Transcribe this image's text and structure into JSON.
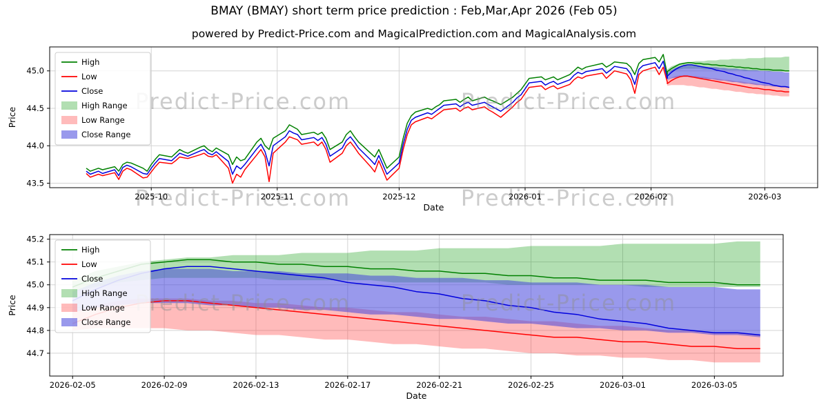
{
  "page": {
    "title": "BMAY (BMAY) short term price prediction : Feb,Mar,Apr 2026 (Feb 05)",
    "subtitle": "powered by Predict-Price.com and MagicalPrediction.com and MagicalAnalysis.com",
    "watermark_text": "Predict-Price.com"
  },
  "colors": {
    "high": "#008000",
    "low": "#ff0000",
    "close": "#0000dd",
    "high_range": "rgba(0,150,0,0.30)",
    "low_range": "rgba(255,60,60,0.35)",
    "close_range": "rgba(70,70,220,0.55)",
    "grid": "#d3d3d3",
    "watermark": "#909090"
  },
  "legend_items": [
    {
      "label": "High",
      "type": "line",
      "color_key": "high"
    },
    {
      "label": "Low",
      "type": "line",
      "color_key": "low"
    },
    {
      "label": "Close",
      "type": "line",
      "color_key": "close"
    },
    {
      "label": "High Range",
      "type": "patch",
      "color_key": "high_range"
    },
    {
      "label": "Low Range",
      "type": "patch",
      "color_key": "low_range"
    },
    {
      "label": "Close Range",
      "type": "patch",
      "color_key": "close_range"
    }
  ],
  "chart_data": {
    "type": "line",
    "charts": [
      {
        "id": "top",
        "xlabel": "Date",
        "ylabel": "Price",
        "ylim": [
          43.44,
          45.32
        ],
        "yticks": [
          43.5,
          44.0,
          44.5,
          45.0
        ],
        "xlim": [
          "2025-09-06",
          "2026-03-14"
        ],
        "xticks": [
          {
            "date": "2025-10-01",
            "label": "2025-10"
          },
          {
            "date": "2025-11-01",
            "label": "2025-11"
          },
          {
            "date": "2025-12-01",
            "label": "2025-12"
          },
          {
            "date": "2026-01-01",
            "label": "2026-01"
          },
          {
            "date": "2026-02-01",
            "label": "2026-02"
          },
          {
            "date": "2026-03-01",
            "label": "2026-03"
          }
        ]
      },
      {
        "id": "bottom",
        "xlabel": "Date",
        "ylabel": "Price",
        "ylim": [
          44.6,
          45.22
        ],
        "yticks": [
          44.7,
          44.8,
          44.9,
          45.0,
          45.1,
          45.2
        ],
        "xlim": [
          "2026-02-04",
          "2026-03-08"
        ],
        "xticks": [
          {
            "date": "2026-02-05",
            "label": "2026-02-05"
          },
          {
            "date": "2026-02-09",
            "label": "2026-02-09"
          },
          {
            "date": "2026-02-13",
            "label": "2026-02-13"
          },
          {
            "date": "2026-02-17",
            "label": "2026-02-17"
          },
          {
            "date": "2026-02-21",
            "label": "2026-02-21"
          },
          {
            "date": "2026-02-25",
            "label": "2026-02-25"
          },
          {
            "date": "2026-03-01",
            "label": "2026-03-01"
          },
          {
            "date": "2026-03-05",
            "label": "2026-03-05"
          }
        ]
      }
    ],
    "history": {
      "dates": [
        "2025-09-15",
        "2025-09-16",
        "2025-09-18",
        "2025-09-19",
        "2025-09-22",
        "2025-09-23",
        "2025-09-24",
        "2025-09-25",
        "2025-09-26",
        "2025-09-29",
        "2025-09-30",
        "2025-10-01",
        "2025-10-02",
        "2025-10-03",
        "2025-10-06",
        "2025-10-07",
        "2025-10-08",
        "2025-10-09",
        "2025-10-10",
        "2025-10-13",
        "2025-10-14",
        "2025-10-15",
        "2025-10-16",
        "2025-10-17",
        "2025-10-20",
        "2025-10-21",
        "2025-10-22",
        "2025-10-23",
        "2025-10-24",
        "2025-10-27",
        "2025-10-28",
        "2025-10-29",
        "2025-10-30",
        "2025-10-31",
        "2025-11-03",
        "2025-11-04",
        "2025-11-05",
        "2025-11-06",
        "2025-11-07",
        "2025-11-10",
        "2025-11-11",
        "2025-11-12",
        "2025-11-13",
        "2025-11-14",
        "2025-11-17",
        "2025-11-18",
        "2025-11-19",
        "2025-11-20",
        "2025-11-21",
        "2025-11-24",
        "2025-11-25",
        "2025-11-26",
        "2025-11-28",
        "2025-12-01",
        "2025-12-02",
        "2025-12-03",
        "2025-12-04",
        "2025-12-05",
        "2025-12-08",
        "2025-12-09",
        "2025-12-10",
        "2025-12-11",
        "2025-12-12",
        "2025-12-15",
        "2025-12-16",
        "2025-12-17",
        "2025-12-18",
        "2025-12-19",
        "2025-12-22",
        "2025-12-23",
        "2025-12-24",
        "2025-12-26",
        "2025-12-29",
        "2025-12-30",
        "2025-12-31",
        "2026-01-02",
        "2026-01-05",
        "2026-01-06",
        "2026-01-07",
        "2026-01-08",
        "2026-01-09",
        "2026-01-12",
        "2026-01-13",
        "2026-01-14",
        "2026-01-15",
        "2026-01-16",
        "2026-01-20",
        "2026-01-21",
        "2026-01-22",
        "2026-01-23",
        "2026-01-26",
        "2026-01-27",
        "2026-01-28",
        "2026-01-29",
        "2026-01-30",
        "2026-02-02",
        "2026-02-03",
        "2026-02-04",
        "2026-02-05"
      ],
      "high": [
        43.7,
        43.66,
        43.7,
        43.68,
        43.72,
        43.66,
        43.75,
        43.78,
        43.77,
        43.7,
        43.66,
        43.75,
        43.82,
        43.88,
        43.85,
        43.9,
        43.95,
        43.92,
        43.9,
        43.98,
        44.0,
        43.95,
        43.92,
        43.97,
        43.88,
        43.75,
        43.85,
        43.8,
        43.82,
        44.05,
        44.1,
        44.0,
        43.95,
        44.1,
        44.2,
        44.28,
        44.25,
        44.22,
        44.15,
        44.18,
        44.15,
        44.18,
        44.1,
        43.95,
        44.05,
        44.15,
        44.2,
        44.12,
        44.05,
        43.9,
        43.85,
        43.95,
        43.7,
        43.85,
        44.1,
        44.3,
        44.4,
        44.45,
        44.5,
        44.48,
        44.52,
        44.55,
        44.6,
        44.62,
        44.58,
        44.62,
        44.65,
        44.6,
        44.65,
        44.62,
        44.6,
        44.55,
        44.65,
        44.7,
        44.75,
        44.9,
        44.92,
        44.88,
        44.9,
        44.92,
        44.88,
        44.95,
        45.0,
        45.05,
        45.02,
        45.05,
        45.1,
        45.05,
        45.08,
        45.12,
        45.1,
        45.05,
        44.95,
        45.1,
        45.15,
        45.18,
        45.12,
        45.22,
        44.95
      ],
      "low": [
        43.63,
        43.58,
        43.62,
        43.6,
        43.64,
        43.55,
        43.66,
        43.7,
        43.68,
        43.57,
        43.58,
        43.65,
        43.72,
        43.78,
        43.76,
        43.8,
        43.85,
        43.84,
        43.83,
        43.88,
        43.9,
        43.86,
        43.85,
        43.88,
        43.7,
        43.5,
        43.62,
        43.58,
        43.68,
        43.88,
        43.95,
        43.85,
        43.52,
        43.9,
        44.05,
        44.12,
        44.1,
        44.08,
        44.02,
        44.05,
        44.0,
        44.05,
        43.95,
        43.78,
        43.9,
        44.0,
        44.05,
        43.98,
        43.9,
        43.72,
        43.65,
        43.8,
        43.54,
        43.7,
        43.95,
        44.15,
        44.28,
        44.32,
        44.38,
        44.36,
        44.4,
        44.44,
        44.48,
        44.5,
        44.46,
        44.5,
        44.52,
        44.48,
        44.52,
        44.48,
        44.45,
        44.38,
        44.52,
        44.58,
        44.62,
        44.78,
        44.8,
        44.75,
        44.78,
        44.8,
        44.76,
        44.82,
        44.88,
        44.92,
        44.9,
        44.93,
        44.97,
        44.9,
        44.95,
        45.0,
        44.96,
        44.88,
        44.7,
        44.95,
        45.0,
        45.05,
        44.95,
        45.05,
        44.85
      ],
      "close": [
        43.66,
        43.62,
        43.66,
        43.63,
        43.68,
        43.6,
        43.71,
        43.74,
        43.72,
        43.63,
        43.62,
        43.7,
        43.77,
        43.83,
        43.8,
        43.85,
        43.9,
        43.88,
        43.86,
        43.93,
        43.95,
        43.9,
        43.88,
        43.92,
        43.79,
        43.62,
        43.73,
        43.69,
        43.75,
        43.96,
        44.02,
        43.92,
        43.73,
        44.0,
        44.12,
        44.2,
        44.17,
        44.15,
        44.08,
        44.11,
        44.07,
        44.11,
        44.02,
        43.86,
        43.97,
        44.07,
        44.12,
        44.05,
        43.97,
        43.81,
        43.75,
        43.87,
        43.62,
        43.77,
        44.02,
        44.22,
        44.34,
        44.38,
        44.44,
        44.42,
        44.46,
        44.5,
        44.54,
        44.56,
        44.52,
        44.56,
        44.58,
        44.54,
        44.58,
        44.55,
        44.52,
        44.46,
        44.58,
        44.64,
        44.68,
        44.84,
        44.86,
        44.81,
        44.84,
        44.86,
        44.82,
        44.88,
        44.94,
        44.98,
        44.96,
        44.99,
        45.03,
        44.97,
        45.01,
        45.06,
        45.03,
        44.96,
        44.82,
        45.02,
        45.07,
        45.11,
        45.03,
        45.13,
        44.9
      ]
    },
    "prediction": {
      "dates": [
        "2026-02-05",
        "2026-02-06",
        "2026-02-07",
        "2026-02-08",
        "2026-02-09",
        "2026-02-10",
        "2026-02-11",
        "2026-02-12",
        "2026-02-13",
        "2026-02-14",
        "2026-02-15",
        "2026-02-16",
        "2026-02-17",
        "2026-02-18",
        "2026-02-19",
        "2026-02-20",
        "2026-02-21",
        "2026-02-22",
        "2026-02-23",
        "2026-02-24",
        "2026-02-25",
        "2026-02-26",
        "2026-02-27",
        "2026-02-28",
        "2026-03-01",
        "2026-03-02",
        "2026-03-03",
        "2026-03-04",
        "2026-03-05",
        "2026-03-06",
        "2026-03-07"
      ],
      "high": [
        44.99,
        45.03,
        45.06,
        45.09,
        45.1,
        45.11,
        45.11,
        45.1,
        45.1,
        45.09,
        45.09,
        45.08,
        45.08,
        45.07,
        45.07,
        45.06,
        45.06,
        45.05,
        45.05,
        45.04,
        45.04,
        45.03,
        45.03,
        45.02,
        45.02,
        45.02,
        45.01,
        45.01,
        45.01,
        45.0,
        45.0
      ],
      "low": [
        44.83,
        44.87,
        44.9,
        44.92,
        44.93,
        44.93,
        44.92,
        44.91,
        44.9,
        44.89,
        44.88,
        44.87,
        44.86,
        44.85,
        44.84,
        44.83,
        44.82,
        44.81,
        44.8,
        44.79,
        44.78,
        44.77,
        44.77,
        44.76,
        44.75,
        44.75,
        44.74,
        44.73,
        44.73,
        44.72,
        44.72
      ],
      "close": [
        44.93,
        44.98,
        45.02,
        45.05,
        45.07,
        45.08,
        45.08,
        45.07,
        45.06,
        45.05,
        45.04,
        45.03,
        45.01,
        45.0,
        44.99,
        44.97,
        44.96,
        44.94,
        44.93,
        44.91,
        44.9,
        44.88,
        44.87,
        44.85,
        44.84,
        44.83,
        44.81,
        44.8,
        44.79,
        44.79,
        44.78
      ],
      "high_range_upper": [
        45.02,
        45.06,
        45.08,
        45.1,
        45.11,
        45.12,
        45.12,
        45.13,
        45.13,
        45.13,
        45.14,
        45.14,
        45.14,
        45.15,
        45.15,
        45.15,
        45.16,
        45.16,
        45.16,
        45.16,
        45.17,
        45.17,
        45.17,
        45.17,
        45.18,
        45.18,
        45.18,
        45.18,
        45.18,
        45.19,
        45.19
      ],
      "high_range_lower": [
        44.97,
        44.99,
        45.01,
        45.02,
        45.03,
        45.03,
        45.03,
        45.03,
        45.03,
        45.02,
        45.02,
        45.02,
        45.02,
        45.02,
        45.01,
        45.01,
        45.01,
        45.01,
        45.01,
        45.0,
        45.0,
        45.0,
        45.0,
        45.0,
        45.0,
        44.99,
        44.99,
        44.99,
        44.99,
        44.99,
        44.99
      ],
      "close_range_upper": [
        44.97,
        45.01,
        45.04,
        45.06,
        45.07,
        45.07,
        45.07,
        45.06,
        45.06,
        45.06,
        45.05,
        45.05,
        45.05,
        45.04,
        45.04,
        45.03,
        45.03,
        45.03,
        45.02,
        45.02,
        45.01,
        45.01,
        45.01,
        45.0,
        45.0,
        45.0,
        44.99,
        44.99,
        44.99,
        44.98,
        44.98
      ],
      "close_range_lower": [
        44.88,
        44.9,
        44.91,
        44.92,
        44.92,
        44.92,
        44.91,
        44.91,
        44.9,
        44.9,
        44.89,
        44.89,
        44.88,
        44.87,
        44.87,
        44.86,
        44.85,
        44.85,
        44.84,
        44.83,
        44.83,
        44.82,
        44.81,
        44.81,
        44.8,
        44.8,
        44.79,
        44.79,
        44.78,
        44.78,
        44.77
      ],
      "low_range_upper": [
        44.88,
        44.91,
        44.93,
        44.94,
        44.94,
        44.94,
        44.93,
        44.93,
        44.92,
        44.92,
        44.91,
        44.9,
        44.9,
        44.89,
        44.88,
        44.88,
        44.87,
        44.86,
        44.86,
        44.85,
        44.84,
        44.84,
        44.83,
        44.82,
        44.82,
        44.81,
        44.8,
        44.8,
        44.79,
        44.79,
        44.78
      ],
      "low_range_lower": [
        44.8,
        44.81,
        44.81,
        44.81,
        44.81,
        44.8,
        44.8,
        44.79,
        44.78,
        44.78,
        44.77,
        44.76,
        44.76,
        44.75,
        44.74,
        44.74,
        44.73,
        44.72,
        44.72,
        44.71,
        44.7,
        44.7,
        44.69,
        44.69,
        44.68,
        44.68,
        44.67,
        44.67,
        44.66,
        44.66,
        44.66
      ]
    }
  }
}
